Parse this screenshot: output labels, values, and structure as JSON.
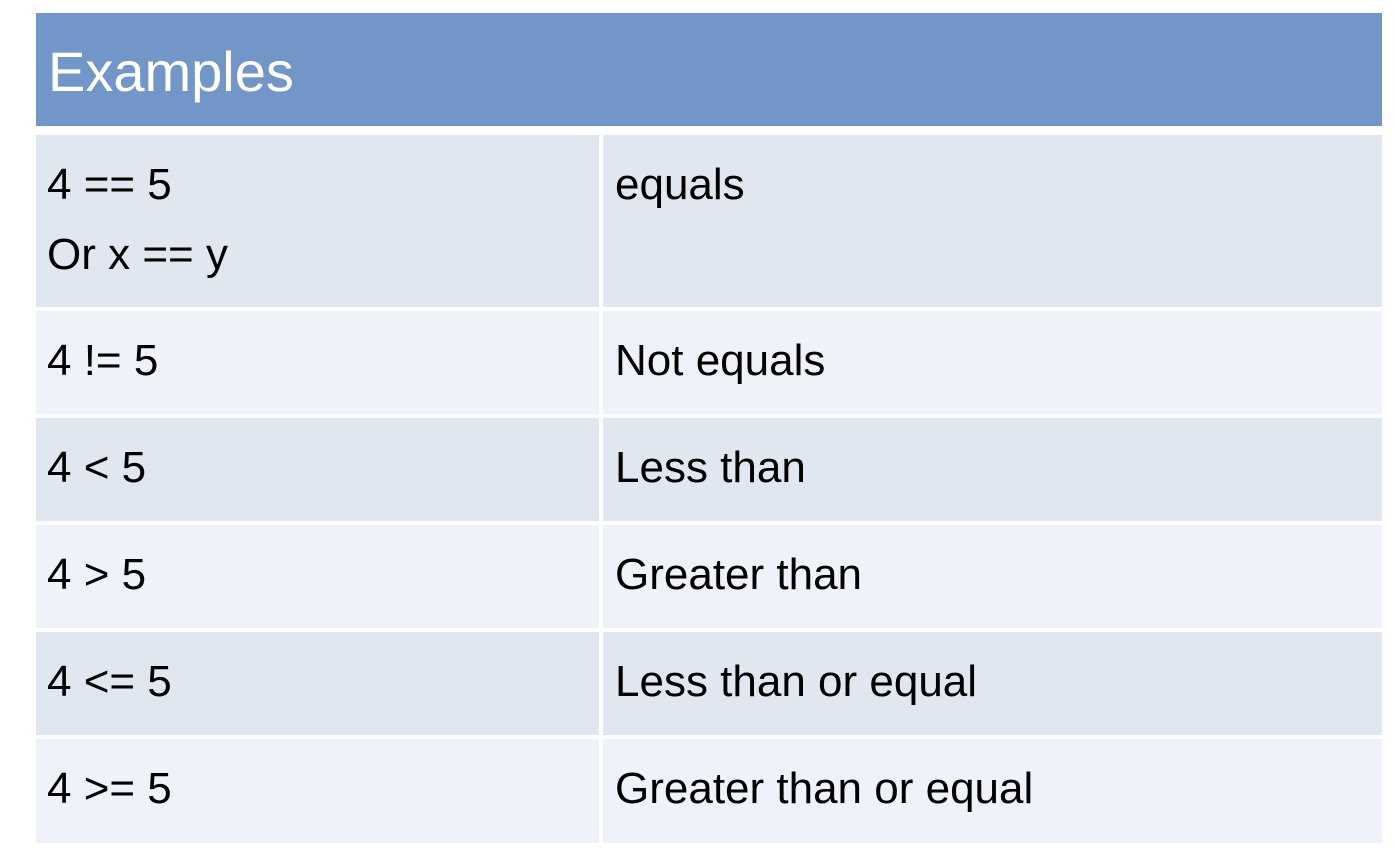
{
  "table": {
    "header": "Examples",
    "rows": [
      {
        "expr": [
          "4 == 5",
          "Or x == y"
        ],
        "meaning": "equals"
      },
      {
        "expr": [
          "4 != 5"
        ],
        "meaning": "Not equals"
      },
      {
        "expr": [
          "4 < 5"
        ],
        "meaning": "Less than"
      },
      {
        "expr": [
          "4 > 5"
        ],
        "meaning": "Greater than"
      },
      {
        "expr": [
          "4 <= 5"
        ],
        "meaning": "Less than or equal"
      },
      {
        "expr": [
          "4 >= 5"
        ],
        "meaning": "Greater than or equal"
      }
    ]
  },
  "colors": {
    "header_bg": "#7396c8",
    "row_odd_bg": "#e1e7f1",
    "row_even_bg": "#eff3f9"
  }
}
